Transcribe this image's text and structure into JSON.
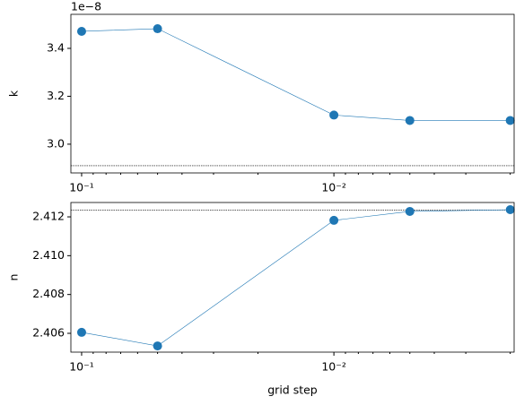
{
  "chart_data": [
    {
      "type": "line",
      "ylabel": "k",
      "offset_label": "1e−8",
      "xlog": true,
      "x": [
        0.1,
        0.05,
        0.01,
        0.005,
        0.002
      ],
      "series": [
        {
          "color": "#1f77b4",
          "values": [
            3.471e-08,
            3.482e-08,
            3.1215e-08,
            3.099e-08,
            3.099e-08
          ]
        }
      ],
      "hline": 2.91e-08,
      "xlim": [
        0.1103,
        0.00193
      ],
      "xticks": [
        {
          "value": 0.1,
          "label": "10⁻¹"
        },
        {
          "value": 0.01,
          "label": "10⁻²"
        }
      ],
      "xminorticks": [
        0.09,
        0.08,
        0.07,
        0.06,
        0.05,
        0.04,
        0.03,
        0.02,
        0.009,
        0.008,
        0.007,
        0.006,
        0.005,
        0.004,
        0.003,
        0.002
      ],
      "ylim": [
        2.88e-08,
        3.542e-08
      ],
      "yticks": [
        {
          "value": 3e-08,
          "label": "3.0"
        },
        {
          "value": 3.2e-08,
          "label": "3.2"
        },
        {
          "value": 3.4e-08,
          "label": "3.4"
        }
      ]
    },
    {
      "type": "line",
      "ylabel": "n",
      "xlabel": "grid step",
      "xlog": true,
      "x": [
        0.1,
        0.05,
        0.01,
        0.005,
        0.002
      ],
      "series": [
        {
          "color": "#1f77b4",
          "values": [
            2.40605,
            2.40535,
            2.41182,
            2.41228,
            2.41237
          ]
        }
      ],
      "hline": 2.41235,
      "xlim": [
        0.1103,
        0.00193
      ],
      "xticks": [
        {
          "value": 0.1,
          "label": "10⁻¹"
        },
        {
          "value": 0.01,
          "label": "10⁻²"
        }
      ],
      "xminorticks": [
        0.09,
        0.08,
        0.07,
        0.06,
        0.05,
        0.04,
        0.03,
        0.02,
        0.009,
        0.008,
        0.007,
        0.006,
        0.005,
        0.004,
        0.003,
        0.002
      ],
      "ylim": [
        2.40503,
        2.41274
      ],
      "yticks": [
        {
          "value": 2.406,
          "label": "2.406"
        },
        {
          "value": 2.408,
          "label": "2.408"
        },
        {
          "value": 2.41,
          "label": "2.410"
        },
        {
          "value": 2.412,
          "label": "2.412"
        }
      ]
    }
  ]
}
